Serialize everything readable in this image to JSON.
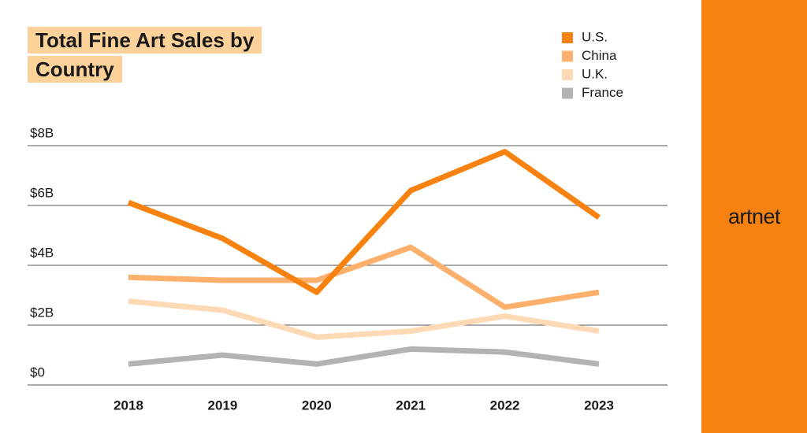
{
  "chart_data": {
    "type": "line",
    "title": "Total Fine Art Sales by Country",
    "categories": [
      "2018",
      "2019",
      "2020",
      "2021",
      "2022",
      "2023"
    ],
    "series": [
      {
        "name": "U.S.",
        "color": "#f7820f",
        "values": [
          6.1,
          4.9,
          3.1,
          6.5,
          7.8,
          5.6
        ]
      },
      {
        "name": "China",
        "color": "#fcb06c",
        "values": [
          3.6,
          3.5,
          3.5,
          4.6,
          2.6,
          3.1
        ]
      },
      {
        "name": "U.K.",
        "color": "#fdd9b5",
        "values": [
          2.8,
          2.5,
          1.6,
          1.8,
          2.3,
          1.8
        ]
      },
      {
        "name": "France",
        "color": "#b3b3b3",
        "values": [
          0.7,
          1.0,
          0.7,
          1.2,
          1.1,
          0.7
        ]
      }
    ],
    "ylim": [
      0,
      8
    ],
    "yticks": [
      {
        "value": 0,
        "label": "$0"
      },
      {
        "value": 2,
        "label": "$2B"
      },
      {
        "value": 4,
        "label": "$4B"
      },
      {
        "value": 6,
        "label": "$6B"
      },
      {
        "value": 8,
        "label": "$8B"
      }
    ],
    "grid": true
  },
  "brand": "artnet"
}
